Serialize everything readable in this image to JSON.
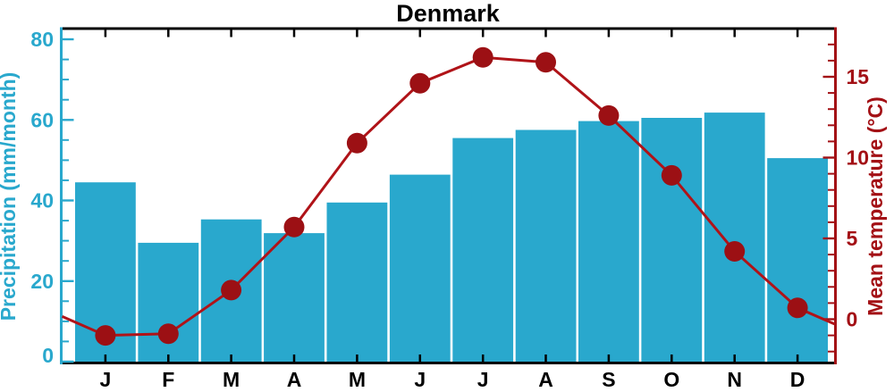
{
  "chart_data": {
    "type": "combo",
    "title": "Denmark",
    "categories": [
      "J",
      "F",
      "M",
      "A",
      "M",
      "J",
      "J",
      "A",
      "S",
      "O",
      "N",
      "D"
    ],
    "series": [
      {
        "name": "Precipitation",
        "type": "bar",
        "axis": "left",
        "unit": "mm/month",
        "values": [
          44.5,
          29.5,
          35.3,
          31.9,
          39.5,
          46.4,
          55.5,
          57.5,
          59.7,
          60.5,
          61.8,
          50.5
        ]
      },
      {
        "name": "Mean temperature",
        "type": "line",
        "axis": "right",
        "unit": "°C",
        "values": [
          -1.0,
          -0.9,
          1.8,
          5.7,
          10.9,
          14.6,
          16.2,
          15.9,
          12.6,
          8.9,
          4.2,
          0.7
        ]
      }
    ],
    "left_axis": {
      "label": "Precipitation (mm/month)",
      "ticks": [
        0,
        20,
        40,
        60,
        80
      ],
      "minor_step": 5,
      "range": [
        0,
        82.8
      ]
    },
    "right_axis": {
      "label": "Mean temperature (°C)",
      "ticks": [
        0,
        5,
        10,
        15
      ],
      "minor_step": 1,
      "range": [
        -2.7,
        18.0
      ]
    },
    "grid": false,
    "legend": "none"
  },
  "colors": {
    "precipitation": "#29A8CD",
    "temperature_line": "#B01318",
    "temperature_marker": "#9C1014",
    "temperature_axis": "#A31015",
    "frame": "#000000",
    "background": "#FFFFFF"
  }
}
